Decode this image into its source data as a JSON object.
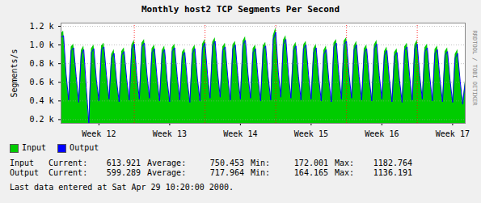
{
  "chart_data": {
    "type": "area",
    "title": "Monthly host2 TCP Segments Per Second",
    "y_label": "Segments/s",
    "x": [
      0,
      0.25,
      0.5,
      0.75,
      1,
      1.25,
      1.5,
      1.75,
      2,
      2.25,
      2.5,
      2.75,
      3,
      3.25,
      3.5,
      3.75,
      4,
      4.25,
      4.5,
      4.75,
      5,
      5.25,
      5.5,
      5.75,
      6,
      6.25,
      6.5,
      6.75,
      7,
      7.25,
      7.5,
      7.75,
      8,
      8.25,
      8.5,
      8.75,
      9,
      9.25,
      9.5,
      9.75,
      10,
      10.25,
      10.5,
      10.75,
      11,
      11.25,
      11.5,
      11.75,
      12,
      12.25,
      12.5,
      12.75,
      13,
      13.25,
      13.5,
      13.75,
      14,
      14.25,
      14.5,
      14.75,
      15,
      15.25,
      15.5,
      15.75,
      16,
      16.25,
      16.5,
      16.75,
      17,
      17.25,
      17.5,
      17.75,
      18,
      18.25,
      18.5,
      18.75,
      19,
      19.25,
      19.5,
      19.75,
      20,
      20.25,
      20.5,
      20.75,
      21,
      21.25,
      21.5,
      21.75,
      22,
      22.25,
      22.5,
      22.75,
      23,
      23.25,
      23.5,
      23.75,
      24,
      24.25,
      24.5,
      24.75,
      25,
      25.25,
      25.5,
      25.75,
      26,
      26.25,
      26.5,
      26.75,
      27,
      27.25,
      27.5,
      27.75,
      28,
      28.25,
      28.5,
      28.75,
      29,
      29.25,
      29.5,
      29.75,
      30,
      30.25,
      30.5,
      30.75,
      31,
      31.25,
      31.5,
      31.75,
      32,
      32.25,
      32.5,
      32.75,
      33,
      33.25,
      33.5,
      33.75,
      34,
      34.25,
      34.5,
      34.75,
      35,
      35.25,
      35.5,
      35.75,
      36,
      36.25,
      36.5,
      36.75,
      37,
      37.25,
      37.5,
      37.75,
      38,
      38.25,
      38.5,
      38.75,
      39,
      39.25,
      39.5,
      39.75,
      40
    ],
    "series": [
      {
        "name": "Input",
        "type": "area",
        "color": "#00cc00",
        "values": [
          1120,
          1150,
          720,
          430,
          980,
          1010,
          690,
          400,
          940,
          990,
          560,
          172.001,
          960,
          1000,
          650,
          420,
          990,
          1020,
          700,
          440,
          900,
          950,
          640,
          410,
          930,
          970,
          660,
          430,
          1000,
          1050,
          700,
          440,
          1020,
          1060,
          720,
          450,
          960,
          1000,
          680,
          420,
          940,
          990,
          650,
          410,
          970,
          1010,
          690,
          430,
          920,
          960,
          640,
          400,
          950,
          1000,
          670,
          420,
          1010,
          1060,
          710,
          450,
          1030,
          1080,
          730,
          460,
          980,
          1020,
          690,
          430,
          1000,
          1040,
          700,
          440,
          1040,
          1090,
          720,
          450,
          960,
          1000,
          670,
          420,
          990,
          1030,
          690,
          430,
          1100,
          1182.764,
          740,
          460,
          1050,
          1100,
          720,
          450,
          980,
          1030,
          690,
          430,
          1000,
          1040,
          700,
          440,
          960,
          1010,
          680,
          420,
          940,
          990,
          660,
          410,
          1020,
          1060,
          710,
          440,
          1040,
          1080,
          720,
          450,
          990,
          1040,
          690,
          430,
          960,
          1000,
          670,
          420,
          1000,
          1050,
          700,
          440,
          930,
          980,
          660,
          410,
          920,
          960,
          650,
          400,
          980,
          1020,
          690,
          430,
          1000,
          1050,
          700,
          440,
          970,
          1010,
          680,
          420,
          950,
          990,
          660,
          410,
          930,
          970,
          650,
          400,
          900,
          950,
          640,
          380,
          613.921
        ]
      },
      {
        "name": "Output",
        "type": "line",
        "color": "#0000ff",
        "values": [
          1080,
          1100,
          690,
          410,
          940,
          970,
          660,
          385,
          900,
          950,
          540,
          164.165,
          920,
          960,
          625,
          400,
          950,
          980,
          670,
          420,
          860,
          910,
          615,
          390,
          890,
          930,
          635,
          410,
          960,
          1010,
          670,
          420,
          980,
          1020,
          690,
          430,
          920,
          960,
          650,
          400,
          900,
          950,
          625,
          390,
          930,
          970,
          660,
          410,
          880,
          920,
          615,
          385,
          910,
          960,
          640,
          400,
          970,
          1020,
          680,
          430,
          990,
          1040,
          700,
          440,
          940,
          980,
          660,
          410,
          960,
          1000,
          670,
          420,
          1000,
          1050,
          690,
          430,
          920,
          960,
          640,
          400,
          950,
          990,
          660,
          410,
          1060,
          1136.191,
          710,
          440,
          1010,
          1060,
          690,
          430,
          940,
          990,
          660,
          410,
          960,
          1000,
          670,
          420,
          920,
          970,
          650,
          400,
          900,
          950,
          630,
          390,
          980,
          1020,
          680,
          420,
          1000,
          1040,
          690,
          430,
          950,
          1000,
          660,
          410,
          920,
          960,
          640,
          400,
          960,
          1010,
          670,
          420,
          890,
          940,
          630,
          390,
          880,
          920,
          620,
          385,
          940,
          980,
          660,
          410,
          960,
          1010,
          670,
          420,
          930,
          970,
          650,
          400,
          910,
          950,
          630,
          390,
          890,
          930,
          620,
          385,
          860,
          910,
          610,
          365,
          599.289
        ]
      }
    ],
    "xlim": [
      0,
      40
    ],
    "xticks": [
      {
        "value": 3.75,
        "label": "Week 12"
      },
      {
        "value": 10.75,
        "label": "Week 13"
      },
      {
        "value": 17.75,
        "label": "Week 14"
      },
      {
        "value": 24.75,
        "label": "Week 15"
      },
      {
        "value": 31.75,
        "label": "Week 16"
      },
      {
        "value": 38.75,
        "label": "Week 17"
      }
    ],
    "ylim": [
      160,
      1235
    ],
    "yticks": [
      {
        "value": 200,
        "label": "0.2 k"
      },
      {
        "value": 400,
        "label": "0.4 k"
      },
      {
        "value": 600,
        "label": "0.6 k"
      },
      {
        "value": 800,
        "label": "0.8 k"
      },
      {
        "value": 1000,
        "label": "1.0 k"
      },
      {
        "value": 1200,
        "label": "1.2 k"
      }
    ],
    "grid": true,
    "legend": "bottom-left",
    "stats": [
      {
        "name": "Input",
        "cells": [
          {
            "label": "Current:",
            "value": "613.921"
          },
          {
            "label": "Average:",
            "value": "750.453"
          },
          {
            "label": "Min:",
            "value": "172.001"
          },
          {
            "label": "Max:",
            "value": "1182.764"
          }
        ]
      },
      {
        "name": "Output",
        "cells": [
          {
            "label": "Current:",
            "value": "599.289"
          },
          {
            "label": "Average:",
            "value": "717.964"
          },
          {
            "label": "Min:",
            "value": "164.165"
          },
          {
            "label": "Max:",
            "value": "1136.191"
          }
        ]
      }
    ],
    "footer": "Last data entered at Sat Apr 29 10:20:00 2000.",
    "watermark": "RRDTOOL / TOBI OETIKER"
  }
}
